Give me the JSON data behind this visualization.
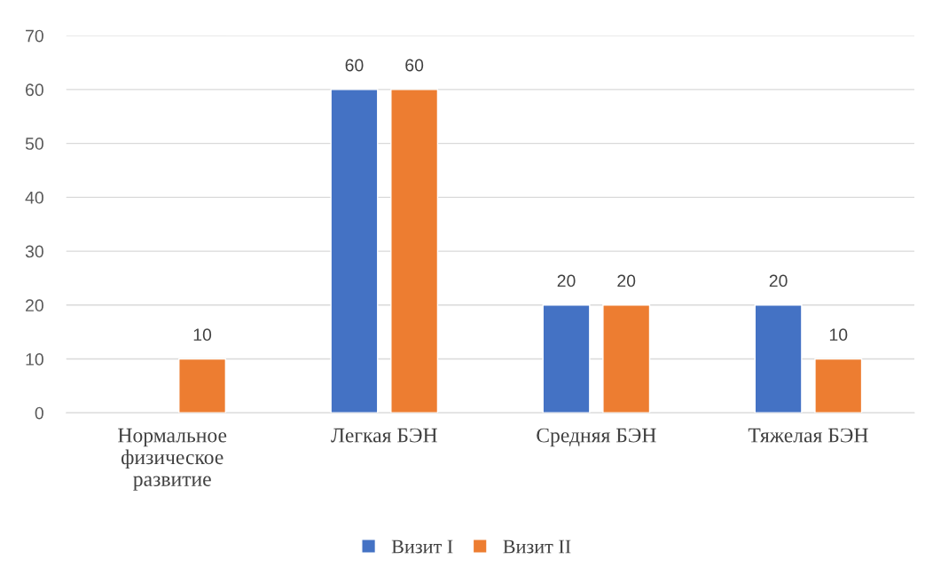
{
  "chart_data": {
    "type": "bar",
    "categories": [
      "Нормальное\nфизическое\nразвитие",
      "Легкая БЭН",
      "Средняя БЭН",
      "Тяжелая БЭН"
    ],
    "series": [
      {
        "name": "Визит I",
        "color": "#4472c4",
        "values": [
          null,
          60,
          20,
          20
        ]
      },
      {
        "name": "Визит II",
        "color": "#ed7d31",
        "values": [
          10,
          60,
          20,
          10
        ]
      }
    ],
    "ylim": [
      0,
      70
    ],
    "yticks": [
      0,
      10,
      20,
      30,
      40,
      50,
      60,
      70
    ],
    "grid": "y",
    "legend": "bottom",
    "data_labels": true
  }
}
